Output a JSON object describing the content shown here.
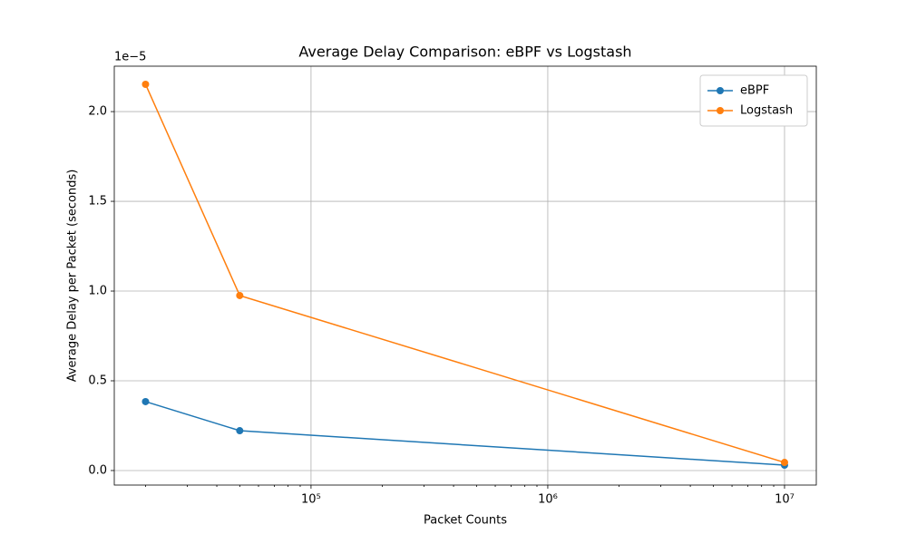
{
  "chart_data": {
    "type": "line",
    "title": "Average Delay Comparison: eBPF vs Logstash",
    "x_label": "Packet Counts",
    "y_label": "Average Delay per Packet (seconds)",
    "y_offset_label": "1e−5",
    "x": [
      20000,
      50000,
      10000000
    ],
    "series": [
      {
        "name": "eBPF",
        "color": "#1f77b4",
        "values": [
          0.384,
          0.222,
          0.03
        ]
      },
      {
        "name": "Logstash",
        "color": "#ff7f0e",
        "values": [
          2.152,
          0.975,
          0.045
        ]
      }
    ],
    "xscale": "log",
    "xlim": [
      14757,
      13620000
    ],
    "xticks": [
      {
        "value": 100000,
        "label": "10⁵"
      },
      {
        "value": 1000000,
        "label": "10⁶"
      },
      {
        "value": 10000000,
        "label": "10⁷"
      }
    ],
    "xminorticks": [
      20000,
      30000,
      40000,
      50000,
      60000,
      70000,
      80000,
      90000,
      200000,
      300000,
      400000,
      500000,
      600000,
      700000,
      800000,
      900000,
      2000000,
      3000000,
      4000000,
      5000000,
      6000000,
      7000000,
      8000000,
      9000000
    ],
    "ylim": [
      -0.081,
      2.253
    ],
    "yticks": [
      {
        "value": 0,
        "label": "0.0"
      },
      0.5,
      {
        "value": 1,
        "label": "1.0"
      },
      1.5,
      {
        "value": 2,
        "label": "2.0"
      }
    ],
    "grid": true,
    "legend": "upper right"
  }
}
